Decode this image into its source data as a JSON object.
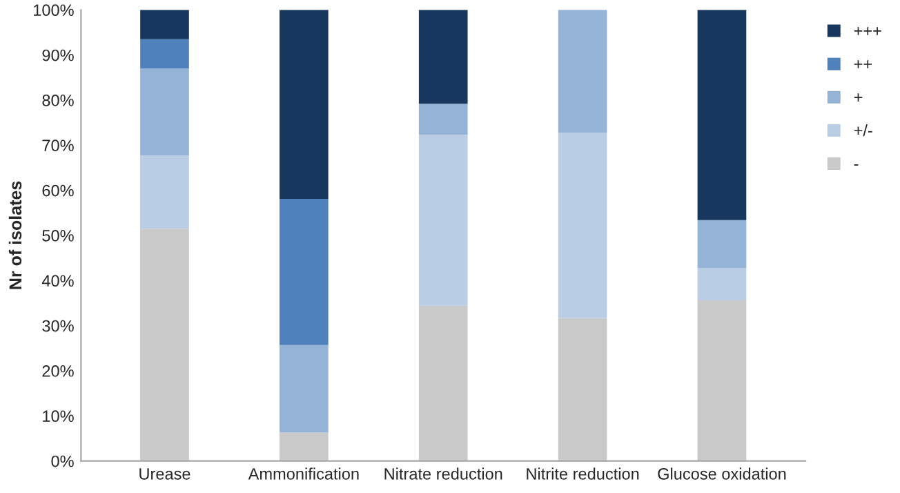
{
  "chart_data": {
    "type": "bar",
    "stacked": true,
    "ylabel": "Nr of isolates",
    "categories": [
      "Urease",
      "Ammonification",
      "Nitrate reduction",
      "Nitrite reduction",
      "Glucose oxidation"
    ],
    "series": [
      {
        "name": "-",
        "color": "#c9c9c9",
        "values": [
          51.5,
          6.3,
          34.4,
          31.7,
          35.6
        ]
      },
      {
        "name": "+/-",
        "color": "#b9cde5",
        "values": [
          16.2,
          0,
          37.9,
          41.1,
          7.2
        ]
      },
      {
        "name": "+",
        "color": "#95b3d7",
        "values": [
          19.3,
          19.4,
          6.9,
          27.2,
          10.6
        ]
      },
      {
        "name": "++",
        "color": "#4f81bd",
        "values": [
          6.5,
          32.4,
          0,
          0,
          0
        ]
      },
      {
        "name": "+++",
        "color": "#17375e",
        "values": [
          6.5,
          41.9,
          20.8,
          0,
          46.6
        ]
      }
    ],
    "ylim": [
      0,
      100
    ],
    "yticks": [
      {
        "value": 0,
        "label": "0%"
      },
      {
        "value": 10,
        "label": "10%"
      },
      {
        "value": 20,
        "label": "20%"
      },
      {
        "value": 30,
        "label": "30%"
      },
      {
        "value": 40,
        "label": "40%"
      },
      {
        "value": 50,
        "label": "50%"
      },
      {
        "value": 60,
        "label": "60%"
      },
      {
        "value": 70,
        "label": "70%"
      },
      {
        "value": 80,
        "label": "80%"
      },
      {
        "value": 90,
        "label": "90%"
      },
      {
        "value": 100,
        "label": "100%"
      }
    ],
    "grid": false,
    "legend": "right"
  }
}
